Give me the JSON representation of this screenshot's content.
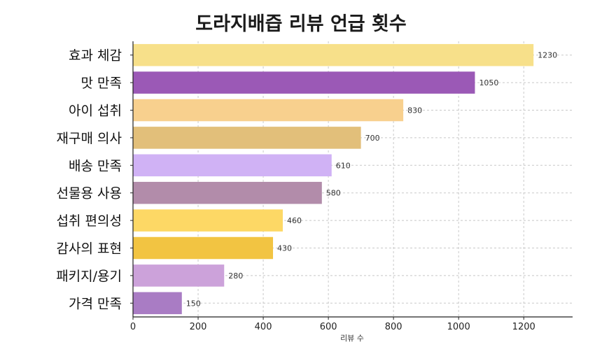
{
  "chart_data": {
    "type": "bar",
    "orientation": "horizontal",
    "title": "도라지배즙 리뷰 언급 횟수",
    "xlabel": "리뷰 수",
    "ylabel": "",
    "categories": [
      "효과 체감",
      "맛 만족",
      "아이 섭취",
      "재구매 의사",
      "배송 만족",
      "선물용 사용",
      "섭취 편의성",
      "감사의 표현",
      "패키지/용기",
      "가격 만족"
    ],
    "values": [
      1230,
      1050,
      830,
      700,
      610,
      580,
      460,
      430,
      280,
      150
    ],
    "colors": [
      "#F7E08A",
      "#9B59B6",
      "#F8D08E",
      "#E2BF7A",
      "#D0B2F5",
      "#B28CAA",
      "#FDD865",
      "#F2C442",
      "#CCA2DA",
      "#A97CC4"
    ],
    "xlim": [
      0,
      1350
    ],
    "xticks": [
      0,
      200,
      400,
      600,
      800,
      1000,
      1200
    ],
    "grid": true,
    "legend": "none"
  }
}
